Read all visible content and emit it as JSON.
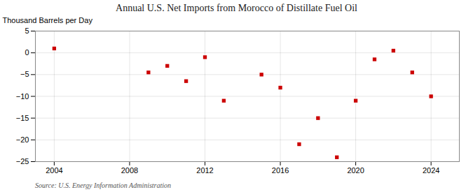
{
  "chart_data": {
    "type": "scatter",
    "title": "Annual U.S. Net Imports from Morocco of Distillate Fuel Oil",
    "ylabel": "Thousand Barrels per Day",
    "source": "Source: U.S. Energy Information Administration",
    "x": [
      2004,
      2009,
      2010,
      2011,
      2012,
      2013,
      2015,
      2016,
      2017,
      2018,
      2019,
      2020,
      2021,
      2022,
      2023,
      2024
    ],
    "values": [
      1.0,
      -4.5,
      -3.0,
      -6.5,
      -1.0,
      -11.0,
      -5.0,
      -8.0,
      -21.0,
      -15.0,
      -24.0,
      -11.0,
      -1.5,
      0.5,
      -4.5,
      -10.0
    ],
    "color": "#cc0000",
    "marker": "square",
    "xlim": [
      2003,
      2025.5
    ],
    "ylim": [
      -25,
      5
    ],
    "xticks": [
      2004,
      2008,
      2012,
      2016,
      2020,
      2024
    ],
    "yticks": [
      5,
      0,
      -5,
      -10,
      -15,
      -20,
      -25
    ],
    "grid": true
  }
}
